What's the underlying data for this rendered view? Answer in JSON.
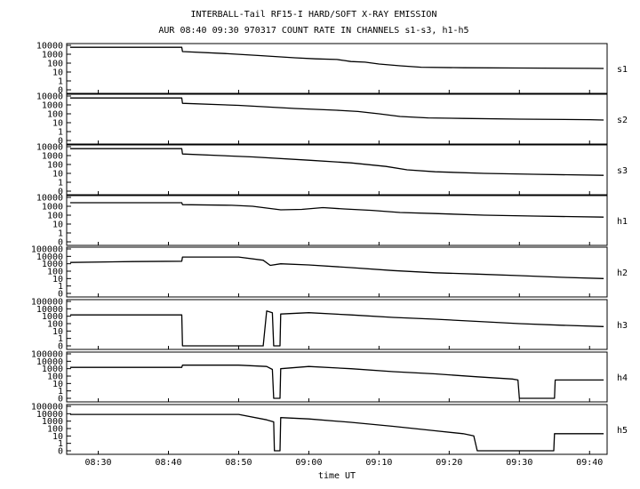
{
  "title_line1": "INTERBALL-Tail RF15-I HARD/SOFT X-RAY EMISSION",
  "title_line2": "AUR 08:40 09:30 970317  COUNT RATE IN CHANNELS s1-s3, h1-h5",
  "xlabel": "time UT",
  "colors": {
    "line": "#000000",
    "background": "#ffffff"
  },
  "chart_data": {
    "type": "line",
    "title": "INTERBALL-Tail RF15-I HARD/SOFT X-RAY EMISSION",
    "subtitle": "AUR 08:40 09:30 970317  COUNT RATE IN CHANNELS s1-s3, h1-h5",
    "xlabel": "time UT",
    "x_unit": "minutes after 08:00 UT",
    "xlim": [
      25.5,
      102.5
    ],
    "x_ticks": [
      "08:30",
      "08:40",
      "08:50",
      "09:00",
      "09:10",
      "09:20",
      "09:30",
      "09:40"
    ],
    "y_scale": "log",
    "grid": false,
    "panels": [
      {
        "name": "s1",
        "y_ticks": [
          "10000",
          "1000",
          "100",
          "10",
          "1",
          "0"
        ],
        "ylim": [
          0,
          10000
        ],
        "points": [
          [
            26,
            6000
          ],
          [
            41.9,
            6000
          ],
          [
            42,
            2000
          ],
          [
            48,
            1200
          ],
          [
            53,
            700
          ],
          [
            58,
            400
          ],
          [
            61,
            300
          ],
          [
            64,
            260
          ],
          [
            65,
            200
          ],
          [
            66,
            150
          ],
          [
            68,
            130
          ],
          [
            70,
            80
          ],
          [
            73,
            50
          ],
          [
            76,
            35
          ],
          [
            82,
            30
          ],
          [
            90,
            28
          ],
          [
            100,
            26
          ],
          [
            102,
            25
          ]
        ]
      },
      {
        "name": "s2",
        "y_ticks": [
          "10000",
          "1000",
          "100",
          "10",
          "1",
          "0"
        ],
        "ylim": [
          0,
          10000
        ],
        "points": [
          [
            26,
            6000
          ],
          [
            41.9,
            6000
          ],
          [
            42,
            1500
          ],
          [
            50,
            900
          ],
          [
            58,
            400
          ],
          [
            64,
            250
          ],
          [
            67,
            180
          ],
          [
            70,
            100
          ],
          [
            73,
            50
          ],
          [
            77,
            35
          ],
          [
            82,
            30
          ],
          [
            90,
            25
          ],
          [
            100,
            22
          ],
          [
            102,
            20
          ]
        ]
      },
      {
        "name": "s3",
        "y_ticks": [
          "10000",
          "1000",
          "100",
          "10",
          "1",
          "0"
        ],
        "ylim": [
          0,
          10000
        ],
        "points": [
          [
            26,
            6000
          ],
          [
            41.9,
            6000
          ],
          [
            42,
            1500
          ],
          [
            52,
            700
          ],
          [
            60,
            300
          ],
          [
            66,
            150
          ],
          [
            71,
            60
          ],
          [
            74,
            25
          ],
          [
            78,
            15
          ],
          [
            85,
            10
          ],
          [
            92,
            8
          ],
          [
            102,
            6
          ]
        ]
      },
      {
        "name": "h1",
        "y_ticks": [
          "10000",
          "1000",
          "100",
          "10",
          "1",
          "0"
        ],
        "ylim": [
          0,
          10000
        ],
        "points": [
          [
            26,
            2500
          ],
          [
            41.9,
            2500
          ],
          [
            42,
            1500
          ],
          [
            49,
            1300
          ],
          [
            52,
            1000
          ],
          [
            56,
            400
          ],
          [
            59,
            450
          ],
          [
            62,
            700
          ],
          [
            65,
            500
          ],
          [
            69,
            350
          ],
          [
            73,
            200
          ],
          [
            78,
            150
          ],
          [
            85,
            100
          ],
          [
            92,
            80
          ],
          [
            102,
            60
          ]
        ]
      },
      {
        "name": "h2",
        "y_ticks": [
          "100000",
          "10000",
          "1000",
          "100",
          "10",
          "1",
          "0"
        ],
        "ylim": [
          0,
          100000
        ],
        "points": [
          [
            26,
            1500
          ],
          [
            35,
            2000
          ],
          [
            41.9,
            2200
          ],
          [
            42,
            8000
          ],
          [
            50,
            8000
          ],
          [
            53.5,
            3000
          ],
          [
            54.5,
            600
          ],
          [
            56,
            1000
          ],
          [
            60,
            700
          ],
          [
            66,
            300
          ],
          [
            72,
            120
          ],
          [
            78,
            60
          ],
          [
            84,
            40
          ],
          [
            90,
            25
          ],
          [
            96,
            15
          ],
          [
            102,
            10
          ]
        ]
      },
      {
        "name": "h3",
        "y_ticks": [
          "100000",
          "10000",
          "1000",
          "100",
          "10",
          "1",
          "0"
        ],
        "ylim": [
          0,
          100000
        ],
        "points": [
          [
            26,
            1500
          ],
          [
            41.9,
            1500
          ],
          [
            42,
            0
          ],
          [
            53.5,
            0
          ],
          [
            54,
            5000
          ],
          [
            54.8,
            3000
          ],
          [
            55,
            0
          ],
          [
            55.9,
            0
          ],
          [
            56,
            2000
          ],
          [
            60,
            3000
          ],
          [
            66,
            1500
          ],
          [
            72,
            700
          ],
          [
            78,
            400
          ],
          [
            84,
            200
          ],
          [
            90,
            100
          ],
          [
            96,
            60
          ],
          [
            102,
            40
          ]
        ]
      },
      {
        "name": "h4",
        "y_ticks": [
          "100000",
          "10000",
          "1000",
          "100",
          "10",
          "1",
          "0"
        ],
        "ylim": [
          0,
          100000
        ],
        "points": [
          [
            26,
            1500
          ],
          [
            41.9,
            1500
          ],
          [
            42,
            3000
          ],
          [
            50,
            3000
          ],
          [
            54,
            2000
          ],
          [
            54.8,
            800
          ],
          [
            55,
            0
          ],
          [
            55.9,
            0
          ],
          [
            56,
            1000
          ],
          [
            60,
            2000
          ],
          [
            66,
            1000
          ],
          [
            72,
            400
          ],
          [
            78,
            200
          ],
          [
            84,
            80
          ],
          [
            89,
            40
          ],
          [
            89.8,
            30
          ],
          [
            90,
            0
          ],
          [
            95,
            0
          ],
          [
            95.1,
            30
          ],
          [
            102,
            30
          ]
        ]
      },
      {
        "name": "h5",
        "y_ticks": [
          "100000",
          "10000",
          "1000",
          "100",
          "10",
          "1",
          "0"
        ],
        "ylim": [
          0,
          100000
        ],
        "points": [
          [
            26,
            8000
          ],
          [
            41.9,
            8000
          ],
          [
            42,
            8000
          ],
          [
            50,
            8000
          ],
          [
            54,
            1500
          ],
          [
            55,
            800
          ],
          [
            55.1,
            0
          ],
          [
            55.9,
            0
          ],
          [
            56,
            3000
          ],
          [
            60,
            2000
          ],
          [
            66,
            700
          ],
          [
            72,
            200
          ],
          [
            78,
            50
          ],
          [
            82,
            20
          ],
          [
            83.5,
            10
          ],
          [
            84,
            0
          ],
          [
            94.9,
            0
          ],
          [
            95,
            20
          ],
          [
            102,
            20
          ]
        ]
      }
    ]
  }
}
